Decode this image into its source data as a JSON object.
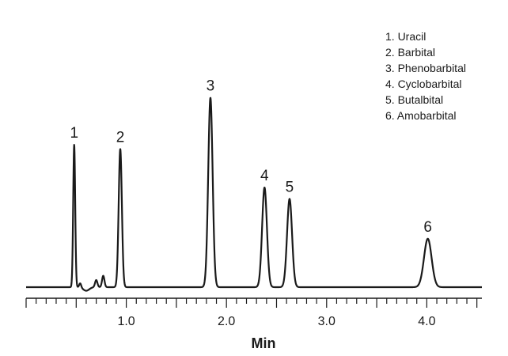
{
  "chart_data": {
    "type": "line",
    "title": "",
    "xlabel": "Min",
    "ylabel": "",
    "xlim": [
      0,
      4.55
    ],
    "x_major_ticks": [
      1.0,
      2.0,
      3.0,
      4.0
    ],
    "x_tick_labels": [
      "1.0",
      "2.0",
      "3.0",
      "4.0"
    ],
    "x_minor_step": 0.1,
    "grid": false,
    "legend_position": "top-right",
    "line_color": "#1a1a1a",
    "peaks": [
      {
        "label": "1",
        "name": "Uracil",
        "rt": 0.48,
        "height": 1.0,
        "width": 0.01
      },
      {
        "label": "2",
        "name": "Barbital",
        "rt": 0.94,
        "height": 0.97,
        "width": 0.016
      },
      {
        "label": "3",
        "name": "Phenobarbital",
        "rt": 1.84,
        "height": 1.33,
        "width": 0.022
      },
      {
        "label": "4",
        "name": "Cyclobarbital",
        "rt": 2.38,
        "height": 0.7,
        "width": 0.024
      },
      {
        "label": "5",
        "name": "Butalbital",
        "rt": 2.63,
        "height": 0.62,
        "width": 0.025
      },
      {
        "label": "6",
        "name": "Amobarbital",
        "rt": 4.01,
        "height": 0.34,
        "width": 0.038
      }
    ],
    "minor_peaks": [
      {
        "rt": 0.54,
        "height": 0.03,
        "width": 0.01
      },
      {
        "rt": 0.7,
        "height": 0.05,
        "width": 0.012
      },
      {
        "rt": 0.77,
        "height": 0.08,
        "width": 0.012
      }
    ],
    "legend": [
      "1. Uracil",
      "2. Barbital",
      "3. Phenobarbital",
      "4. Cyclobarbital",
      "5. Butalbital",
      "6. Amobarbital"
    ]
  }
}
